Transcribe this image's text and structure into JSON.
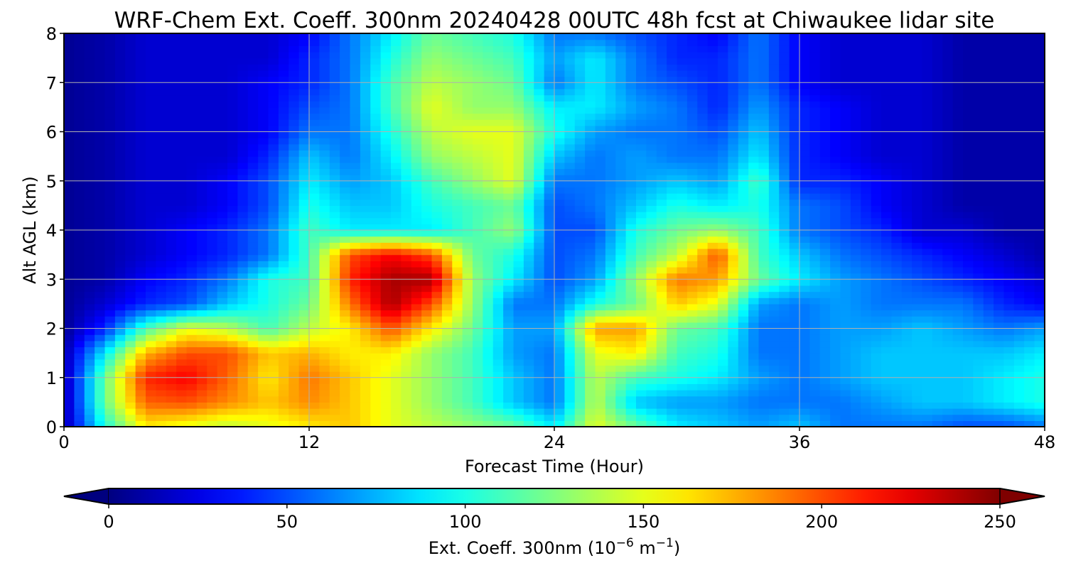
{
  "chart_data": {
    "type": "heatmap",
    "title": "WRF-Chem Ext. Coeff. 300nm  20240428 00UTC 48h fcst at Chiwaukee lidar site",
    "xlabel": "Forecast Time (Hour)",
    "ylabel": "Alt AGL (km)",
    "xlim": [
      0,
      48
    ],
    "ylim": [
      0,
      8
    ],
    "x_ticks": [
      0,
      12,
      24,
      36,
      48
    ],
    "y_ticks": [
      0,
      1,
      2,
      3,
      4,
      5,
      6,
      7,
      8
    ],
    "grid": true,
    "colormap": "jet",
    "colorbar": {
      "min": 0,
      "max": 250,
      "ticks": [
        0,
        50,
        100,
        150,
        200,
        250
      ],
      "extend": "both",
      "label_main": "Ext. Coeff. 300nm  (10",
      "label_exp1": "−6",
      "label_mid": " m",
      "label_exp2": "−1",
      "label_end": ")"
    },
    "x": [
      0,
      2,
      4,
      6,
      8,
      10,
      12,
      14,
      16,
      18,
      20,
      22,
      24,
      26,
      28,
      30,
      32,
      34,
      36,
      38,
      40,
      42,
      44,
      46,
      48
    ],
    "y": [
      0,
      0.5,
      1,
      1.5,
      2,
      2.5,
      3,
      3.5,
      4,
      4.5,
      5,
      5.5,
      6,
      6.5,
      7,
      7.5,
      8
    ],
    "z": [
      [
        10,
        100,
        160,
        150,
        140,
        150,
        160,
        170,
        150,
        140,
        130,
        120,
        90,
        150,
        120,
        90,
        80,
        70,
        80,
        60,
        60,
        60,
        50,
        50,
        60
      ],
      [
        10,
        120,
        195,
        200,
        185,
        170,
        185,
        170,
        150,
        130,
        110,
        80,
        60,
        140,
        80,
        70,
        70,
        60,
        60,
        60,
        70,
        80,
        80,
        90,
        100
      ],
      [
        10,
        120,
        210,
        220,
        195,
        160,
        190,
        170,
        150,
        130,
        110,
        80,
        60,
        140,
        110,
        100,
        90,
        70,
        60,
        70,
        80,
        80,
        80,
        90,
        100
      ],
      [
        10,
        90,
        175,
        200,
        200,
        170,
        175,
        160,
        160,
        130,
        110,
        70,
        60,
        150,
        160,
        110,
        100,
        60,
        60,
        70,
        80,
        80,
        80,
        80,
        90
      ],
      [
        5,
        40,
        110,
        150,
        140,
        110,
        140,
        160,
        200,
        160,
        120,
        70,
        70,
        180,
        180,
        120,
        110,
        60,
        60,
        70,
        70,
        80,
        70,
        60,
        70
      ],
      [
        5,
        20,
        40,
        50,
        80,
        100,
        120,
        190,
        240,
        200,
        130,
        60,
        60,
        100,
        120,
        170,
        150,
        70,
        60,
        70,
        60,
        60,
        60,
        40,
        30
      ],
      [
        5,
        10,
        30,
        40,
        60,
        100,
        110,
        210,
        240,
        240,
        130,
        90,
        50,
        70,
        130,
        190,
        180,
        120,
        90,
        70,
        60,
        50,
        40,
        30,
        20
      ],
      [
        5,
        10,
        20,
        30,
        40,
        60,
        110,
        200,
        220,
        200,
        120,
        100,
        50,
        60,
        110,
        140,
        200,
        110,
        80,
        60,
        50,
        40,
        30,
        20,
        10
      ],
      [
        5,
        10,
        20,
        30,
        40,
        60,
        110,
        90,
        90,
        90,
        110,
        130,
        50,
        50,
        100,
        120,
        130,
        110,
        60,
        50,
        40,
        20,
        20,
        10,
        10
      ],
      [
        5,
        10,
        20,
        20,
        30,
        50,
        100,
        80,
        80,
        100,
        110,
        120,
        50,
        60,
        80,
        100,
        90,
        100,
        60,
        50,
        30,
        20,
        10,
        10,
        10
      ],
      [
        5,
        10,
        20,
        20,
        30,
        50,
        90,
        70,
        80,
        110,
        130,
        150,
        60,
        60,
        70,
        80,
        70,
        110,
        40,
        40,
        30,
        20,
        10,
        10,
        10
      ],
      [
        5,
        10,
        20,
        20,
        20,
        40,
        80,
        60,
        90,
        130,
        140,
        150,
        80,
        60,
        70,
        60,
        60,
        90,
        40,
        30,
        20,
        20,
        10,
        10,
        10
      ],
      [
        5,
        10,
        20,
        20,
        20,
        30,
        60,
        60,
        100,
        140,
        150,
        150,
        100,
        70,
        60,
        60,
        50,
        80,
        40,
        30,
        20,
        20,
        10,
        10,
        10
      ],
      [
        5,
        10,
        20,
        20,
        20,
        30,
        50,
        60,
        110,
        150,
        130,
        130,
        90,
        90,
        70,
        60,
        40,
        70,
        40,
        30,
        20,
        20,
        10,
        10,
        10
      ],
      [
        5,
        10,
        20,
        20,
        20,
        30,
        40,
        60,
        110,
        140,
        130,
        120,
        60,
        90,
        60,
        50,
        40,
        60,
        30,
        20,
        20,
        20,
        10,
        10,
        10
      ],
      [
        5,
        10,
        20,
        20,
        20,
        20,
        40,
        60,
        100,
        130,
        120,
        110,
        70,
        90,
        60,
        40,
        40,
        60,
        30,
        20,
        20,
        20,
        10,
        10,
        10
      ],
      [
        5,
        10,
        20,
        20,
        20,
        20,
        30,
        60,
        90,
        120,
        110,
        100,
        60,
        60,
        50,
        40,
        30,
        60,
        30,
        20,
        20,
        20,
        10,
        10,
        10
      ]
    ]
  }
}
